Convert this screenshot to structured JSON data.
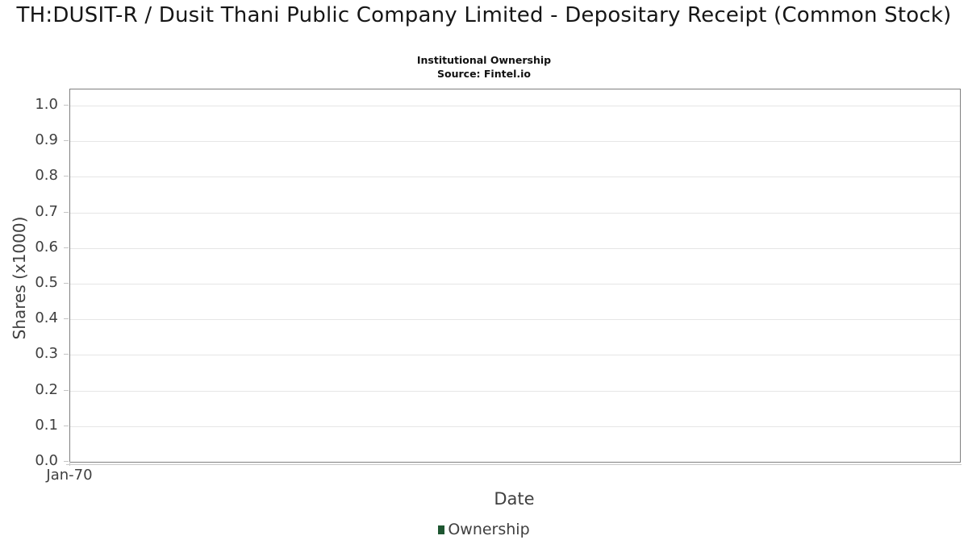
{
  "header": {
    "title": "TH:DUSIT-R / Dusit Thani Public Company Limited - Depositary Receipt (Common Stock)",
    "subtitle": "Institutional Ownership",
    "source": "Source: Fintel.io"
  },
  "chart_data": {
    "type": "line",
    "title": "TH:DUSIT-R / Dusit Thani Public Company Limited - Depositary Receipt (Common Stock)",
    "subtitle": "Institutional Ownership",
    "source": "Source: Fintel.io",
    "xlabel": "Date",
    "ylabel": "Shares (x1000)",
    "ylim": [
      0.0,
      1.045
    ],
    "grid": true,
    "legend_position": "bottom",
    "y_ticks": [
      {
        "value": 0.0,
        "label": "0.0"
      },
      {
        "value": 0.1,
        "label": "0.1"
      },
      {
        "value": 0.2,
        "label": "0.2"
      },
      {
        "value": 0.3,
        "label": "0.3"
      },
      {
        "value": 0.4,
        "label": "0.4"
      },
      {
        "value": 0.5,
        "label": "0.5"
      },
      {
        "value": 0.6,
        "label": "0.6"
      },
      {
        "value": 0.7,
        "label": "0.7"
      },
      {
        "value": 0.8,
        "label": "0.8"
      },
      {
        "value": 0.9,
        "label": "0.9"
      },
      {
        "value": 1.0,
        "label": "1.0"
      }
    ],
    "x_ticks": [
      {
        "label": "Jan-70",
        "pos": 0.0
      }
    ],
    "series": [
      {
        "name": "Ownership",
        "color": "#1e5631",
        "x": [],
        "values": []
      }
    ]
  },
  "colors": {
    "plot_border": "#7f7f7f",
    "gridline": "#e6e6e6",
    "tick": "#c4c4c4",
    "axis_text": "#404040",
    "title_text": "#161616",
    "legend_green": "#1e5631"
  }
}
